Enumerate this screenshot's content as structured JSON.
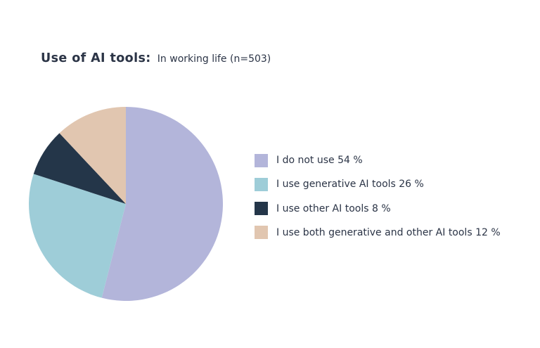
{
  "header": {
    "title": "Use of AI tools:",
    "subtitle": "In working life (n=503)"
  },
  "chart_data": {
    "type": "pie",
    "title": "Use of AI tools:",
    "subtitle": "In working life (n=503)",
    "unit": "%",
    "legend_position": "right",
    "slices": [
      {
        "label": "I do not use 54 %",
        "value": 54,
        "color": "#b3b5da"
      },
      {
        "label": "I use generative AI tools 26 %",
        "value": 26,
        "color": "#9ecdd8"
      },
      {
        "label": "I use other AI tools 8 %",
        "value": 8,
        "color": "#243649"
      },
      {
        "label": "I use both generative and other AI tools 12 %",
        "value": 12,
        "color": "#e1c6b0"
      }
    ]
  }
}
